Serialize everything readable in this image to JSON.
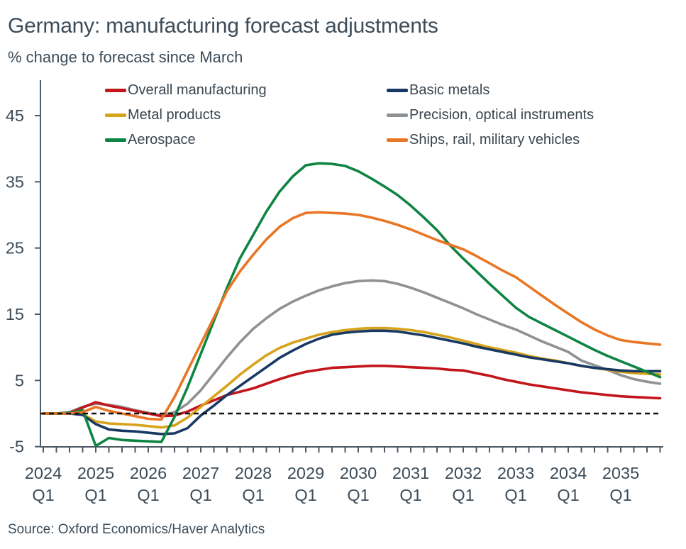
{
  "chart_data": {
    "type": "line",
    "title": "Germany: manufacturing forecast adjustments",
    "subtitle": "% change to forecast since March",
    "source": "Source: Oxford Economics/Haver Analytics",
    "x_unit": "quarter",
    "x_start": "2024 Q1",
    "x_end": "2035 Q4",
    "x_years": [
      "2024",
      "2025",
      "2026",
      "2027",
      "2028",
      "2029",
      "2030",
      "2031",
      "2032",
      "2033",
      "2034",
      "2035"
    ],
    "x_minor_label": "Q1",
    "y_ticks": [
      45,
      35,
      25,
      15,
      5,
      -5
    ],
    "ylim": [
      -5,
      50
    ],
    "grid": false,
    "zero_line": {
      "style": "dashed",
      "color": "#111111",
      "value": 0
    },
    "axis_color": "#4d5964",
    "text_color": "#3d4c59",
    "legend": {
      "position": "top",
      "columns": 2
    },
    "series": [
      {
        "id": "overall-manufacturing",
        "name": "Overall manufacturing",
        "color": "#c3161c",
        "values": [
          0,
          0,
          0.1,
          0.9,
          1.7,
          1.2,
          0.8,
          0.4,
          0,
          -0.4,
          -0.3,
          0.3,
          1.2,
          2,
          2.8,
          3.3,
          3.8,
          4.5,
          5.2,
          5.8,
          6.3,
          6.6,
          6.9,
          7,
          7.1,
          7.2,
          7.2,
          7.1,
          7,
          6.9,
          6.8,
          6.6,
          6.5,
          6.1,
          5.7,
          5.2,
          4.8,
          4.4,
          4.1,
          3.8,
          3.5,
          3.2,
          3,
          2.8,
          2.6,
          2.5,
          2.4,
          2.3
        ]
      },
      {
        "id": "basic-metals",
        "name": "Basic metals",
        "color": "#173963",
        "values": [
          0,
          0,
          0,
          -0.2,
          -1.6,
          -2.4,
          -2.6,
          -2.7,
          -2.9,
          -3.1,
          -3,
          -2.2,
          -0.3,
          1.2,
          2.8,
          4.2,
          5.6,
          7,
          8.4,
          9.5,
          10.5,
          11.3,
          11.9,
          12.2,
          12.4,
          12.5,
          12.5,
          12.4,
          12.1,
          11.8,
          11.4,
          11,
          10.6,
          10.1,
          9.7,
          9.3,
          8.9,
          8.5,
          8.2,
          7.9,
          7.6,
          7.2,
          6.9,
          6.7,
          6.5,
          6.4,
          6.4,
          6.4
        ]
      },
      {
        "id": "metal-products",
        "name": "Metal products",
        "color": "#d7a31a",
        "values": [
          0,
          0,
          0,
          -0.1,
          -1.2,
          -1.5,
          -1.6,
          -1.7,
          -1.9,
          -2.1,
          -1.8,
          -0.6,
          1,
          2.6,
          4.2,
          5.9,
          7.4,
          8.8,
          9.9,
          10.7,
          11.3,
          11.9,
          12.3,
          12.6,
          12.8,
          12.9,
          12.9,
          12.8,
          12.6,
          12.3,
          11.9,
          11.5,
          11,
          10.5,
          10,
          9.6,
          9.2,
          8.7,
          8.3,
          8,
          7.6,
          7.2,
          6.9,
          6.6,
          6.3,
          6.1,
          6,
          5.9
        ]
      },
      {
        "id": "precision-optical-instruments",
        "name": "Precision, optical instruments",
        "color": "#8f9193",
        "values": [
          0,
          0,
          0.2,
          1,
          1.5,
          1.3,
          1,
          0.5,
          0.1,
          -0.3,
          0.2,
          1.5,
          3.5,
          6,
          8.5,
          10.8,
          12.8,
          14.4,
          15.8,
          16.9,
          17.8,
          18.6,
          19.2,
          19.7,
          20,
          20.1,
          20,
          19.6,
          19,
          18.3,
          17.5,
          16.7,
          15.9,
          15,
          14.2,
          13.4,
          12.7,
          11.8,
          10.9,
          10.1,
          9.3,
          8,
          7.3,
          6.6,
          5.8,
          5.2,
          4.8,
          4.5
        ]
      },
      {
        "id": "aerospace",
        "name": "Aerospace",
        "color": "#0e8442",
        "values": [
          0,
          0,
          0.1,
          0.5,
          -4.9,
          -3.7,
          -4,
          -4.1,
          -4.2,
          -4.3,
          -0.5,
          4,
          9,
          14,
          19,
          23.5,
          27,
          30.5,
          33.5,
          35.8,
          37.5,
          37.8,
          37.7,
          37.4,
          36.6,
          35.5,
          34.3,
          33,
          31.4,
          29.6,
          27.7,
          25.4,
          23.4,
          21.5,
          19.6,
          17.8,
          16,
          14.6,
          13.6,
          12.6,
          11.6,
          10.6,
          9.6,
          8.7,
          7.9,
          7.1,
          6.3,
          5.5
        ]
      },
      {
        "id": "ships-rail-military-vehicles",
        "name": "Ships, rail, military vehicles",
        "color": "#e87624",
        "values": [
          0,
          0,
          0,
          0.2,
          1,
          0.4,
          0,
          -0.4,
          -0.8,
          -0.9,
          2.5,
          6.5,
          10.5,
          14.5,
          18.5,
          21.5,
          24,
          26.3,
          28.2,
          29.5,
          30.3,
          30.4,
          30.3,
          30.2,
          30,
          29.6,
          29.1,
          28.5,
          27.8,
          27,
          26.2,
          25.5,
          24.8,
          23.8,
          22.7,
          21.6,
          20.6,
          19.2,
          17.8,
          16.4,
          15.1,
          13.8,
          12.7,
          11.8,
          11.1,
          10.8,
          10.6,
          10.4
        ]
      }
    ]
  }
}
